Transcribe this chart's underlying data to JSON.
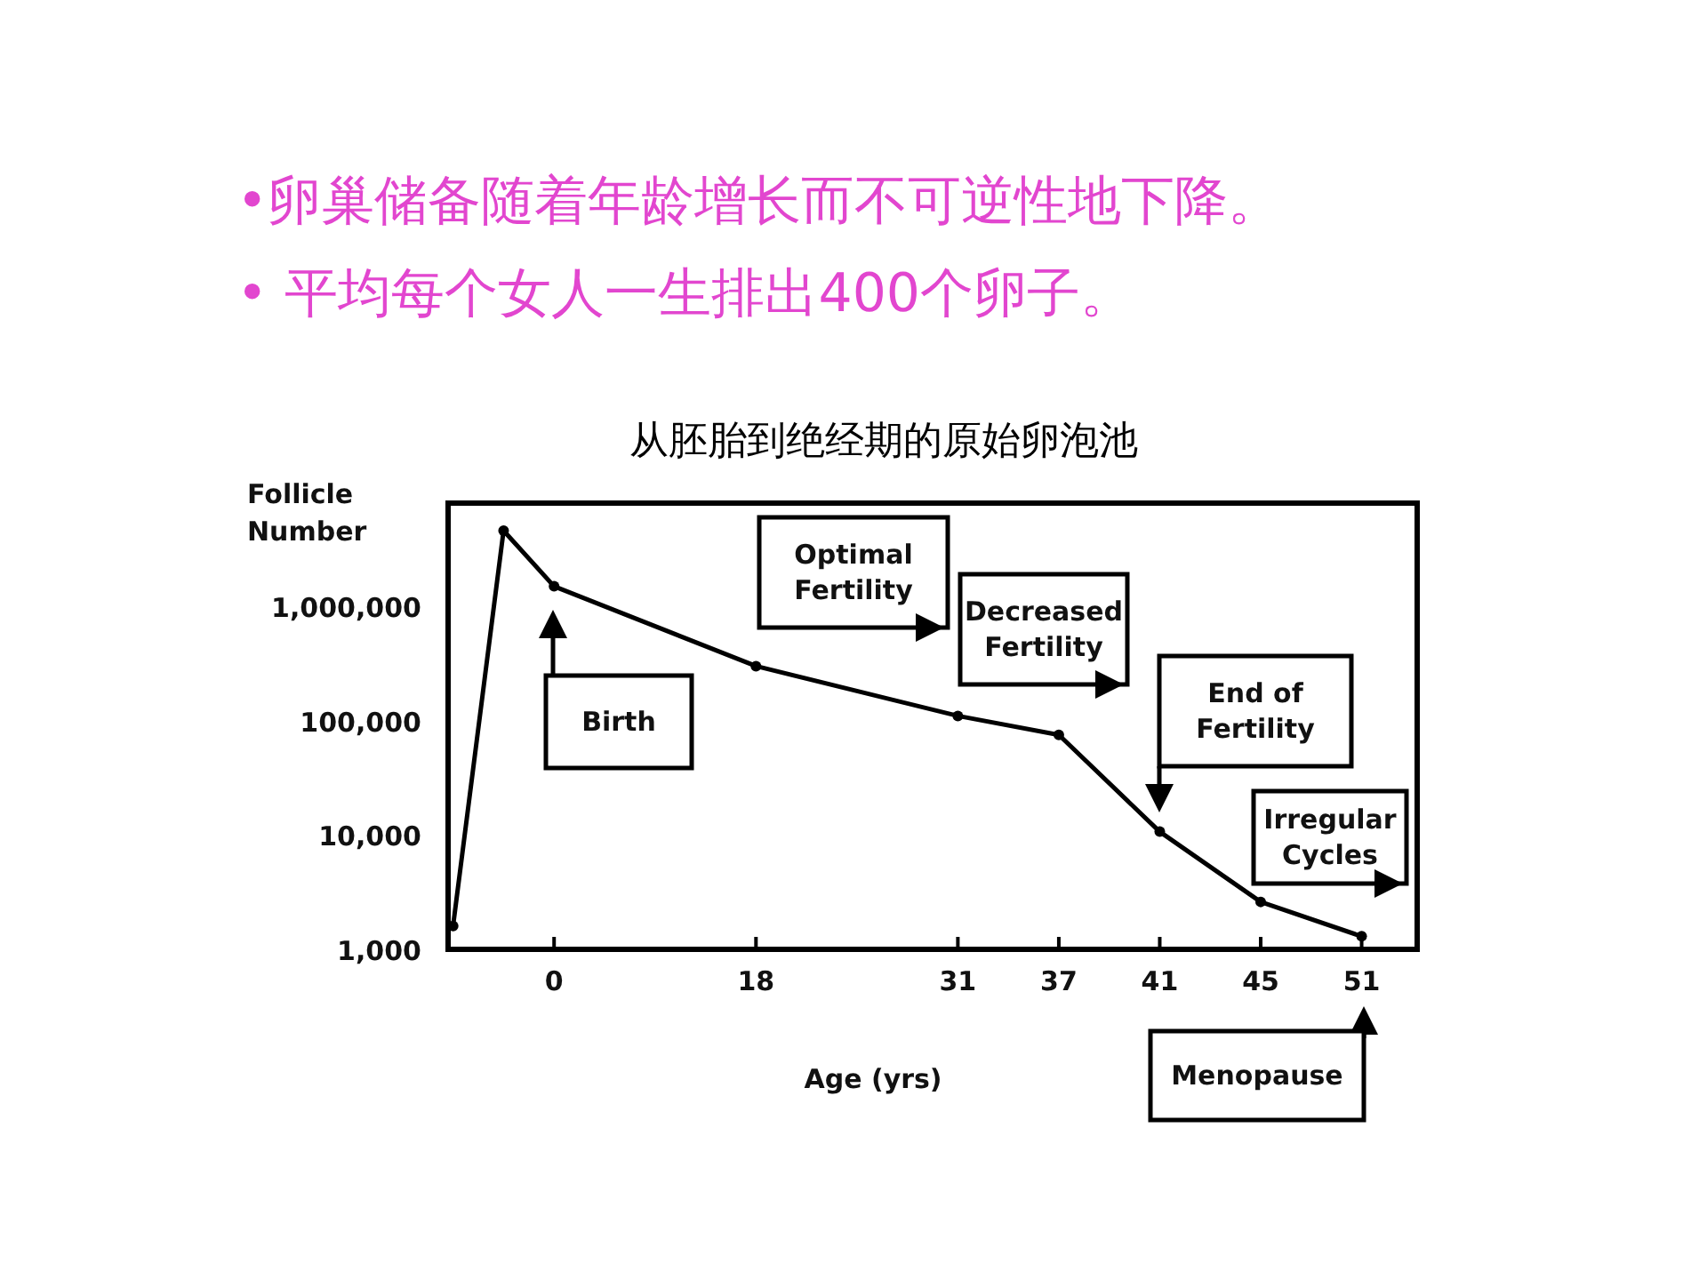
{
  "chart_data": {
    "type": "line",
    "title": "从胚胎到绝经期的原始卵泡池",
    "xlabel": "Age (yrs)",
    "ylabel": "Follicle Number",
    "categories": [
      null,
      null,
      "0",
      null,
      null,
      null,
      "18",
      null,
      null,
      null,
      "31",
      null,
      "37",
      null,
      "41",
      null,
      "45",
      null,
      "51"
    ],
    "values": [
      1600,
      4600000,
      1500000,
      null,
      null,
      null,
      300000,
      null,
      null,
      null,
      110000,
      null,
      75000,
      null,
      10700,
      null,
      2600,
      null,
      1300
    ],
    "color": "#000000",
    "marker": "circle",
    "log": "y",
    "ylim": [
      1000,
      8000000
    ],
    "yticks": [
      {
        "value": 1000,
        "label": "1,000"
      },
      {
        "value": 10000,
        "label": "10,000"
      },
      {
        "value": 100000,
        "label": "100,000"
      },
      {
        "value": 1000000,
        "label": "1,000,000"
      }
    ],
    "annotations": [
      "•卵巢储备随着年龄增长而不可逆性地下降。",
      "• 平均每个女人一生排出400个卵子。",
      "Birth",
      "Optimal Fertility",
      "Decreased Fertility",
      "End of Fertility",
      "Irregular Cycles",
      "Menopause"
    ]
  }
}
